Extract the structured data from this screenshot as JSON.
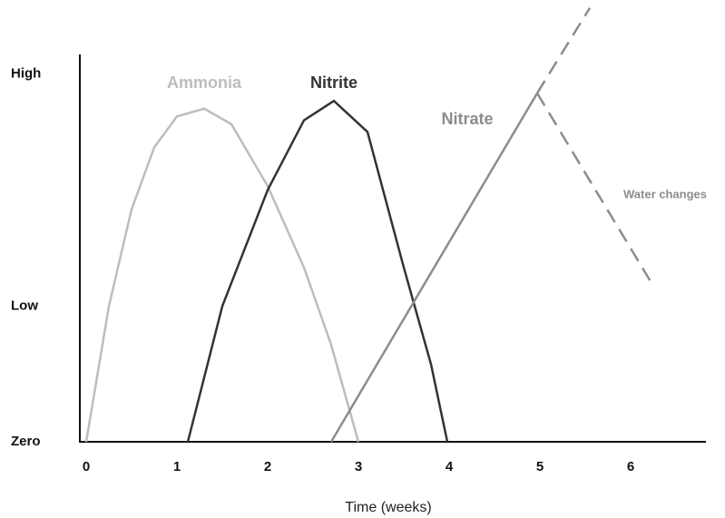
{
  "chart_data": {
    "type": "line",
    "x_label": "Time (weeks)",
    "xlim": [
      -0.07,
      6.83
    ],
    "xticks": [
      0,
      1,
      2,
      3,
      4,
      5,
      6
    ],
    "ylim": [
      0,
      100
    ],
    "yticks": [
      {
        "value": 0,
        "label": "Zero"
      },
      {
        "value": 35,
        "label": "Low"
      },
      {
        "value": 95,
        "label": "High"
      }
    ],
    "series": [
      {
        "name": "Ammonia",
        "color": "#bdbdbd",
        "dashed": false,
        "x": [
          0,
          0.25,
          0.5,
          0.75,
          1.0,
          1.3,
          1.6,
          2.0,
          2.4,
          2.7,
          3.0
        ],
        "values": [
          0,
          35,
          60,
          76,
          84,
          86,
          82,
          66,
          45,
          25,
          0
        ]
      },
      {
        "name": "Nitrite",
        "color": "#333333",
        "dashed": false,
        "x": [
          1.12,
          1.5,
          2.0,
          2.4,
          2.73,
          3.1,
          3.5,
          3.8,
          3.98
        ],
        "values": [
          0,
          35,
          65,
          83,
          88,
          80,
          45,
          20,
          0
        ]
      },
      {
        "name": "Nitrate",
        "color": "#8c8c8c",
        "dashed": false,
        "x": [
          2.7,
          4.97
        ],
        "values": [
          0,
          90
        ]
      },
      {
        "color": "#8c8c8c",
        "dashed": true,
        "x": [
          4.97,
          5.55
        ],
        "values": [
          90,
          112
        ]
      },
      {
        "name": "Water changes",
        "color": "#8c8c8c",
        "dashed": true,
        "x": [
          4.97,
          6.23
        ],
        "values": [
          90,
          41
        ]
      }
    ]
  }
}
